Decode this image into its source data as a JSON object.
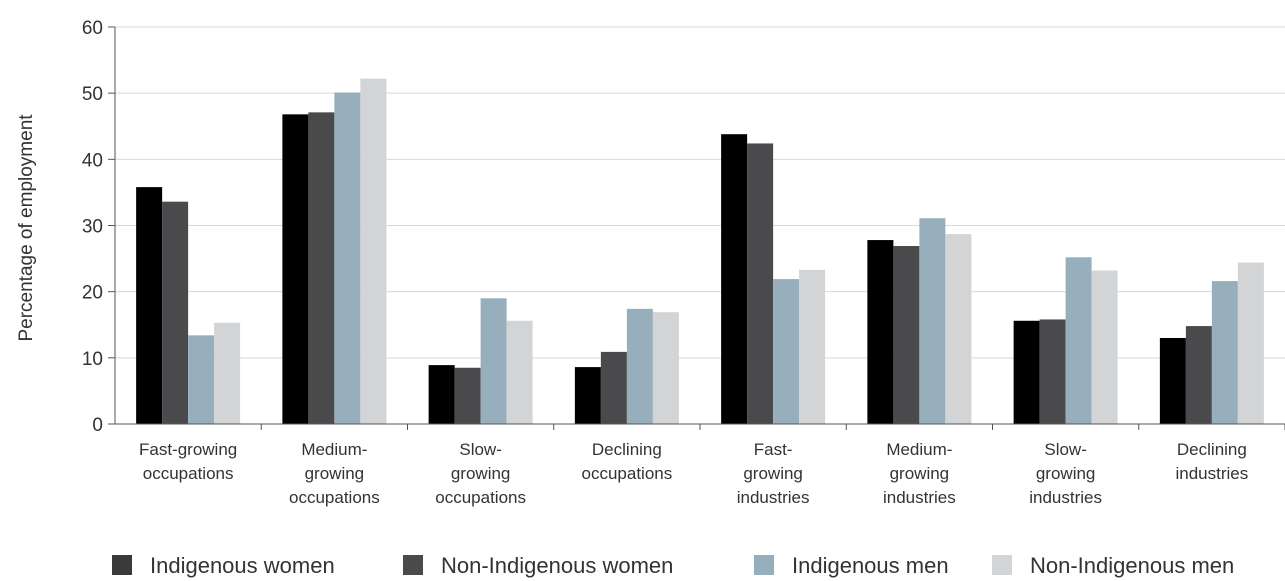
{
  "chart_data": {
    "type": "bar",
    "ylabel": "Percentage of employment",
    "ylim": [
      0,
      60
    ],
    "yticks": [
      0,
      10,
      20,
      30,
      40,
      50,
      60
    ],
    "grid": true,
    "legend_position": "bottom",
    "categories": [
      [
        "Fast-growing",
        "occupations"
      ],
      [
        "Medium-",
        "growing",
        "occupations"
      ],
      [
        "Slow-",
        "growing",
        "occupations"
      ],
      [
        "Declining",
        "occupations"
      ],
      [
        "Fast-",
        "growing",
        "industries"
      ],
      [
        "Medium-",
        "growing",
        "industries"
      ],
      [
        "Slow-",
        "growing",
        "industries"
      ],
      [
        "Declining",
        "industries"
      ]
    ],
    "series": [
      {
        "name": "Indigenous women",
        "color": "#000000",
        "legend_color": "#3a3a3a",
        "values": [
          35.8,
          46.8,
          8.9,
          8.6,
          43.8,
          27.8,
          15.6,
          13.0
        ]
      },
      {
        "name": "Non-Indigenous women",
        "color": "#4a4a4c",
        "legend_color": "#4a4a4c",
        "values": [
          33.6,
          47.1,
          8.5,
          10.9,
          42.4,
          26.9,
          15.8,
          14.8
        ]
      },
      {
        "name": "Indigenous men",
        "color": "#97afbd",
        "legend_color": "#97afbd",
        "values": [
          13.4,
          50.1,
          19.0,
          17.4,
          21.9,
          31.1,
          25.2,
          21.6
        ]
      },
      {
        "name": "Non-Indigenous men",
        "color": "#d3d4d6",
        "legend_color": "#d3d4d6",
        "values": [
          15.3,
          52.2,
          15.6,
          16.9,
          23.3,
          28.7,
          23.2,
          24.4
        ]
      }
    ]
  }
}
